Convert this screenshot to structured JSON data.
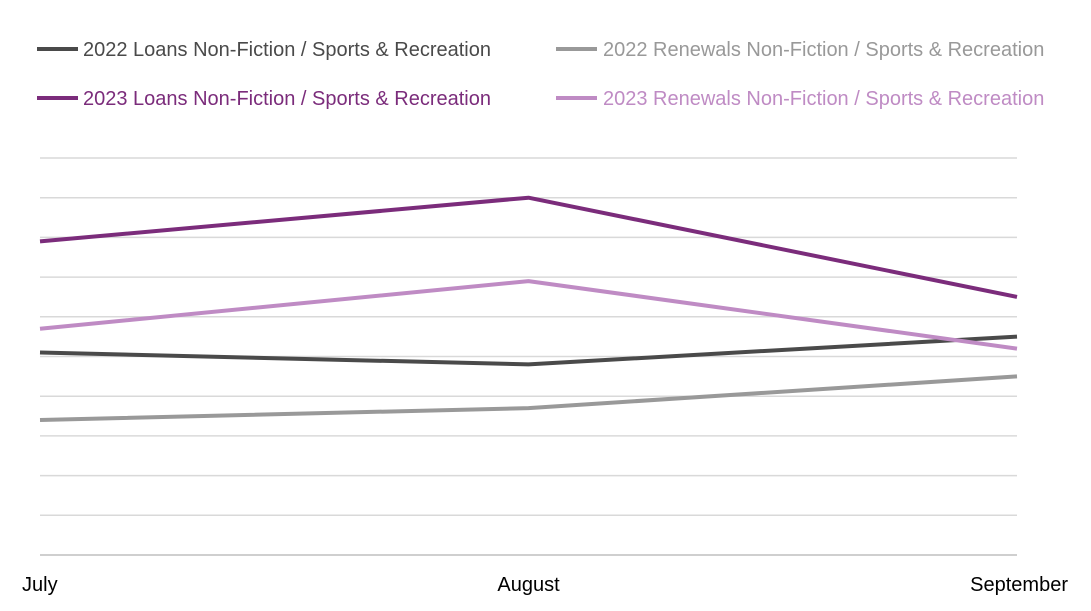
{
  "chart_data": {
    "type": "line",
    "title": "",
    "xlabel": "",
    "ylabel": "",
    "categories": [
      "July",
      "August",
      "September"
    ],
    "ylim": [
      0,
      100
    ],
    "y_gridlines": 10,
    "y_tick_labels_visible": false,
    "grid": true,
    "legend": "top",
    "series": [
      {
        "name": "2022 Loans Non-Fiction / Sports & Recreation",
        "values": [
          51,
          48,
          55
        ],
        "color": "#4a4a4a"
      },
      {
        "name": "2022 Renewals Non-Fiction / Sports & Recreation",
        "values": [
          34,
          37,
          45
        ],
        "color": "#999999"
      },
      {
        "name": "2023 Loans Non-Fiction / Sports & Recreation",
        "values": [
          79,
          90,
          65
        ],
        "color": "#7b2c7b"
      },
      {
        "name": "2023 Renewals Non-Fiction / Sports & Recreation",
        "values": [
          57,
          69,
          52
        ],
        "color": "#bf8bc4"
      }
    ]
  }
}
